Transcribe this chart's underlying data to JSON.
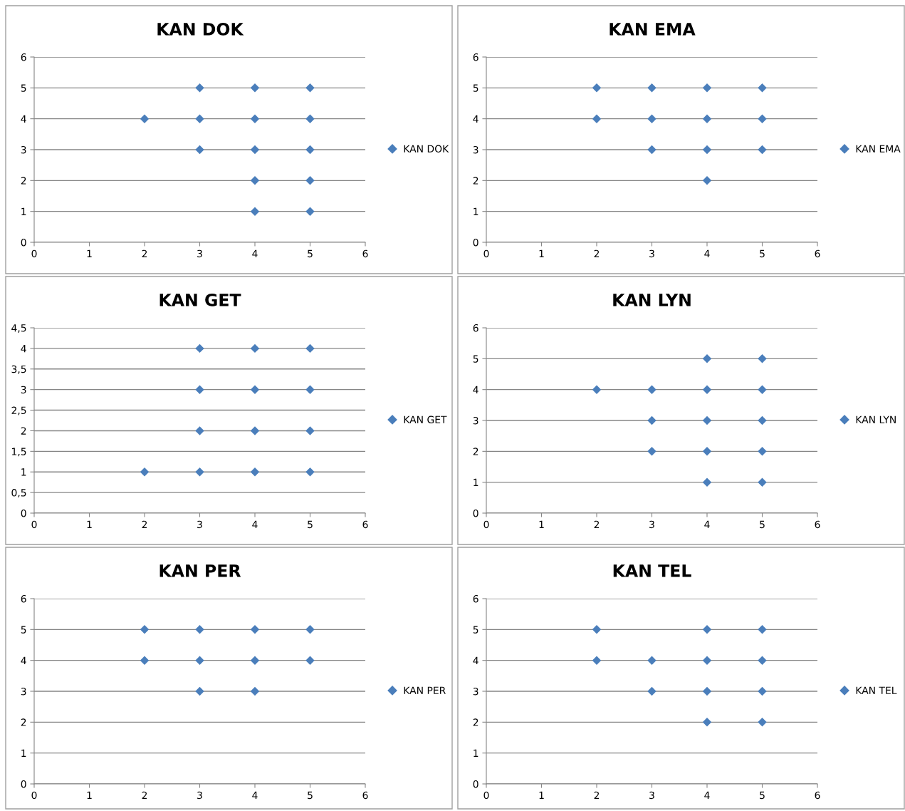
{
  "chart_data": [
    {
      "type": "scatter",
      "title": "KAN DOK",
      "x": [
        2,
        3,
        3,
        3,
        4,
        4,
        4,
        4,
        4,
        5,
        5,
        5,
        5,
        5
      ],
      "series": [
        {
          "name": "KAN DOK",
          "color": "#4a7ebb",
          "values": [
            4,
            5,
            4,
            3,
            5,
            4,
            3,
            2,
            1,
            5,
            4,
            3,
            2,
            1
          ]
        }
      ],
      "xlim": [
        0,
        6
      ],
      "xticks": [
        0,
        1,
        2,
        3,
        4,
        5,
        6
      ],
      "ylim": [
        0,
        6
      ],
      "yticks": [
        0,
        1,
        2,
        3,
        4,
        5,
        6
      ],
      "grid": "y",
      "legend": "right",
      "marker": "diamond"
    },
    {
      "type": "scatter",
      "title": "KAN EMA",
      "x": [
        2,
        2,
        3,
        3,
        3,
        4,
        4,
        4,
        4,
        5,
        5,
        5
      ],
      "series": [
        {
          "name": "KAN EMA",
          "color": "#4a7ebb",
          "values": [
            5,
            4,
            5,
            4,
            3,
            5,
            4,
            3,
            2,
            5,
            4,
            3
          ]
        }
      ],
      "xlim": [
        0,
        6
      ],
      "xticks": [
        0,
        1,
        2,
        3,
        4,
        5,
        6
      ],
      "ylim": [
        0,
        6
      ],
      "yticks": [
        0,
        1,
        2,
        3,
        4,
        5,
        6
      ],
      "grid": "y",
      "legend": "right",
      "marker": "diamond"
    },
    {
      "type": "scatter",
      "title": "KAN GET",
      "x": [
        2,
        3,
        3,
        3,
        3,
        4,
        4,
        4,
        4,
        5,
        5,
        5,
        5
      ],
      "series": [
        {
          "name": "KAN GET",
          "color": "#4a7ebb",
          "values": [
            1,
            4,
            3,
            2,
            1,
            4,
            3,
            2,
            1,
            4,
            3,
            2,
            1
          ]
        }
      ],
      "xlim": [
        0,
        6
      ],
      "xticks": [
        0,
        1,
        2,
        3,
        4,
        5,
        6
      ],
      "ylim": [
        0,
        4.5
      ],
      "yticks": [
        0,
        {
          "value": 0.5,
          "label": "0,5"
        },
        1,
        {
          "value": 1.5,
          "label": "1,5"
        },
        2,
        {
          "value": 2.5,
          "label": "2,5"
        },
        3,
        {
          "value": 3.5,
          "label": "3,5"
        },
        4,
        {
          "value": 4.5,
          "label": "4,5"
        }
      ],
      "grid": "y",
      "legend": "right",
      "marker": "diamond"
    },
    {
      "type": "scatter",
      "title": "KAN LYN",
      "x": [
        2,
        3,
        3,
        3,
        4,
        4,
        4,
        4,
        4,
        5,
        5,
        5,
        5,
        5
      ],
      "series": [
        {
          "name": "KAN LYN",
          "color": "#4a7ebb",
          "values": [
            4,
            4,
            3,
            2,
            5,
            4,
            3,
            2,
            1,
            5,
            4,
            3,
            2,
            1
          ]
        }
      ],
      "xlim": [
        0,
        6
      ],
      "xticks": [
        0,
        1,
        2,
        3,
        4,
        5,
        6
      ],
      "ylim": [
        0,
        6
      ],
      "yticks": [
        0,
        1,
        2,
        3,
        4,
        5,
        6
      ],
      "grid": "y",
      "legend": "right",
      "marker": "diamond"
    },
    {
      "type": "scatter",
      "title": "KAN PER",
      "x": [
        2,
        2,
        3,
        3,
        3,
        4,
        4,
        4,
        5,
        5
      ],
      "series": [
        {
          "name": "KAN PER",
          "color": "#4a7ebb",
          "values": [
            5,
            4,
            5,
            4,
            3,
            5,
            4,
            3,
            5,
            4
          ]
        }
      ],
      "xlim": [
        0,
        6
      ],
      "xticks": [
        0,
        1,
        2,
        3,
        4,
        5,
        6
      ],
      "ylim": [
        0,
        6
      ],
      "yticks": [
        0,
        1,
        2,
        3,
        4,
        5,
        6
      ],
      "grid": "y",
      "legend": "right",
      "marker": "diamond"
    },
    {
      "type": "scatter",
      "title": "KAN TEL",
      "x": [
        2,
        2,
        3,
        3,
        4,
        4,
        4,
        4,
        5,
        5,
        5,
        5
      ],
      "series": [
        {
          "name": "KAN TEL",
          "color": "#4a7ebb",
          "values": [
            5,
            4,
            4,
            3,
            5,
            4,
            3,
            2,
            5,
            4,
            3,
            2
          ]
        }
      ],
      "xlim": [
        0,
        6
      ],
      "xticks": [
        0,
        1,
        2,
        3,
        4,
        5,
        6
      ],
      "ylim": [
        0,
        6
      ],
      "yticks": [
        0,
        1,
        2,
        3,
        4,
        5,
        6
      ],
      "grid": "y",
      "legend": "right",
      "marker": "diamond"
    }
  ]
}
